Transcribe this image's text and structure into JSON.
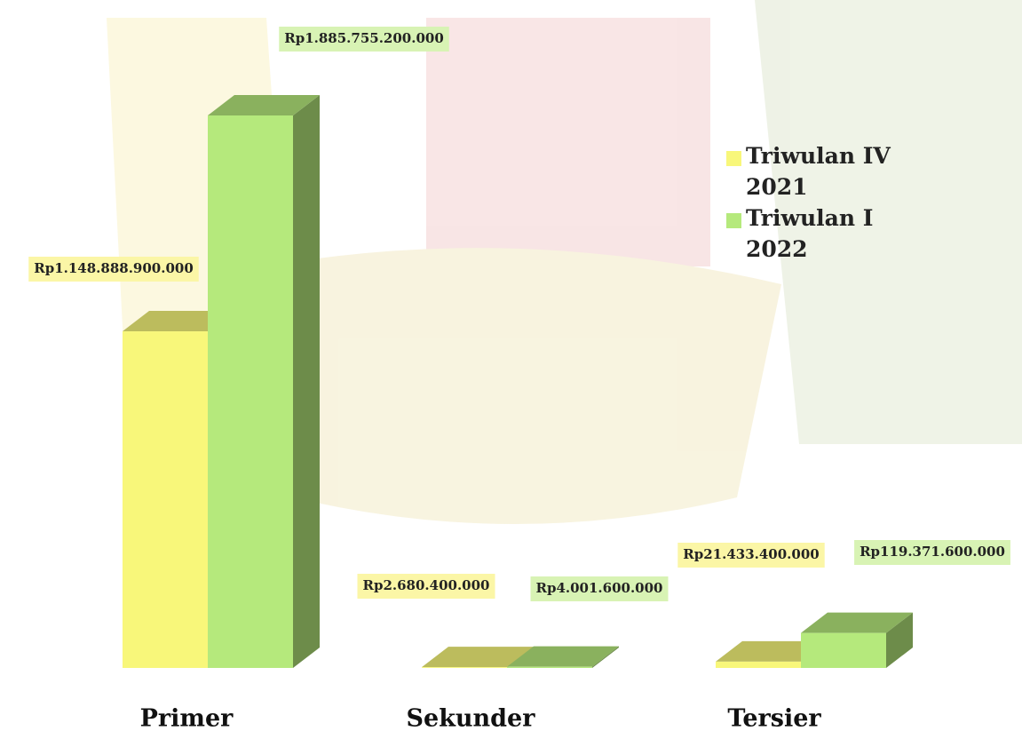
{
  "chart_data": {
    "type": "bar3d",
    "categories": [
      "Primer",
      "Sekunder",
      "Tersier"
    ],
    "series": [
      {
        "name": "Triwulan IV 2021",
        "color": "#f8f77a",
        "values": [
          1148888900000,
          2680400000,
          21433400000
        ],
        "value_labels": [
          "Rp1.148.888.900.000",
          "Rp2.680.400.000",
          "Rp21.433.400.000"
        ]
      },
      {
        "name": "Triwulan I 2022",
        "color": "#b5e97c",
        "values": [
          1885755200000,
          4001600000,
          119371600000
        ],
        "value_labels": [
          "Rp1.885.755.200.000",
          "Rp4.001.600.000",
          "Rp119.371.600.000"
        ]
      }
    ],
    "legend": "right"
  }
}
